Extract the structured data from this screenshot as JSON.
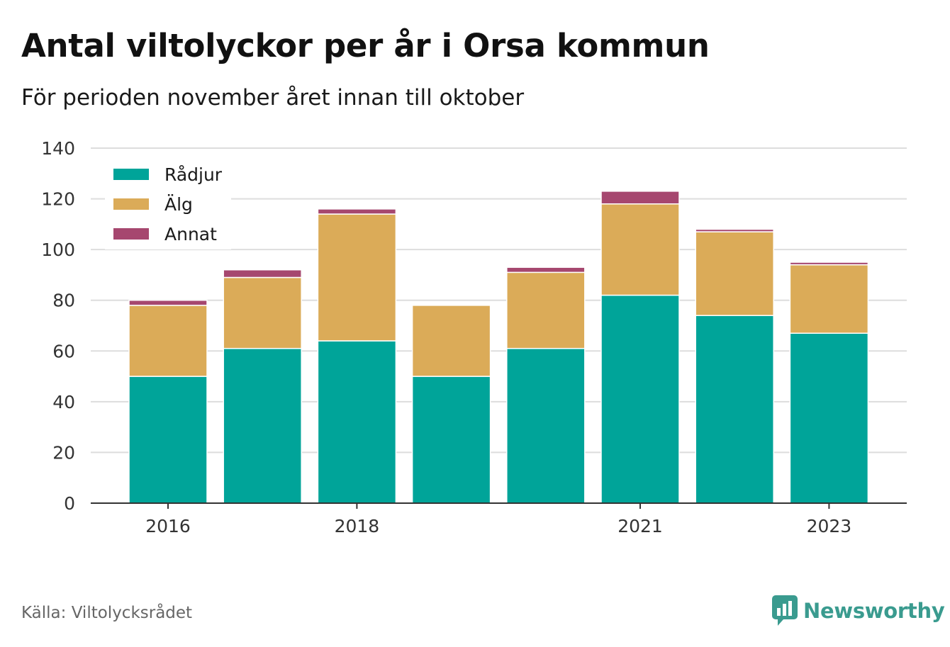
{
  "title": "Antal viltolyckor per år i Orsa kommun",
  "subtitle": "För perioden november året innan till oktober",
  "source": "Källa: Viltolycksrådet",
  "brand": {
    "name": "Newsworthy",
    "icon": "newsworthy-logo-icon",
    "color": "#3a9b8f"
  },
  "colors": {
    "Rådjur": "#00a499",
    "Älg": "#dbab58",
    "Annat": "#a6476f"
  },
  "chart_data": {
    "type": "bar",
    "stacked": true,
    "title": "Antal viltolyckor per år i Orsa kommun",
    "subtitle": "För perioden november året innan till oktober",
    "categories": [
      2016,
      2017,
      2018,
      2019,
      2020,
      2021,
      2022,
      2023
    ],
    "x_tick_labels": [
      "2016",
      "2018",
      "2021",
      "2023"
    ],
    "x_tick_categories": [
      2016,
      2018,
      2021,
      2023
    ],
    "series": [
      {
        "name": "Rådjur",
        "color": "#00a499",
        "values": [
          50,
          61,
          64,
          50,
          61,
          82,
          74,
          67
        ]
      },
      {
        "name": "Älg",
        "color": "#dbab58",
        "values": [
          28,
          28,
          50,
          28,
          30,
          36,
          33,
          27
        ]
      },
      {
        "name": "Annat",
        "color": "#a6476f",
        "values": [
          2,
          3,
          2,
          0,
          2,
          5,
          1,
          1
        ]
      }
    ],
    "ylim": [
      0,
      140
    ],
    "y_ticks": [
      0,
      20,
      40,
      60,
      80,
      100,
      120,
      140
    ],
    "xlabel": "",
    "ylabel": "",
    "grid": true,
    "legend": "top-left"
  }
}
